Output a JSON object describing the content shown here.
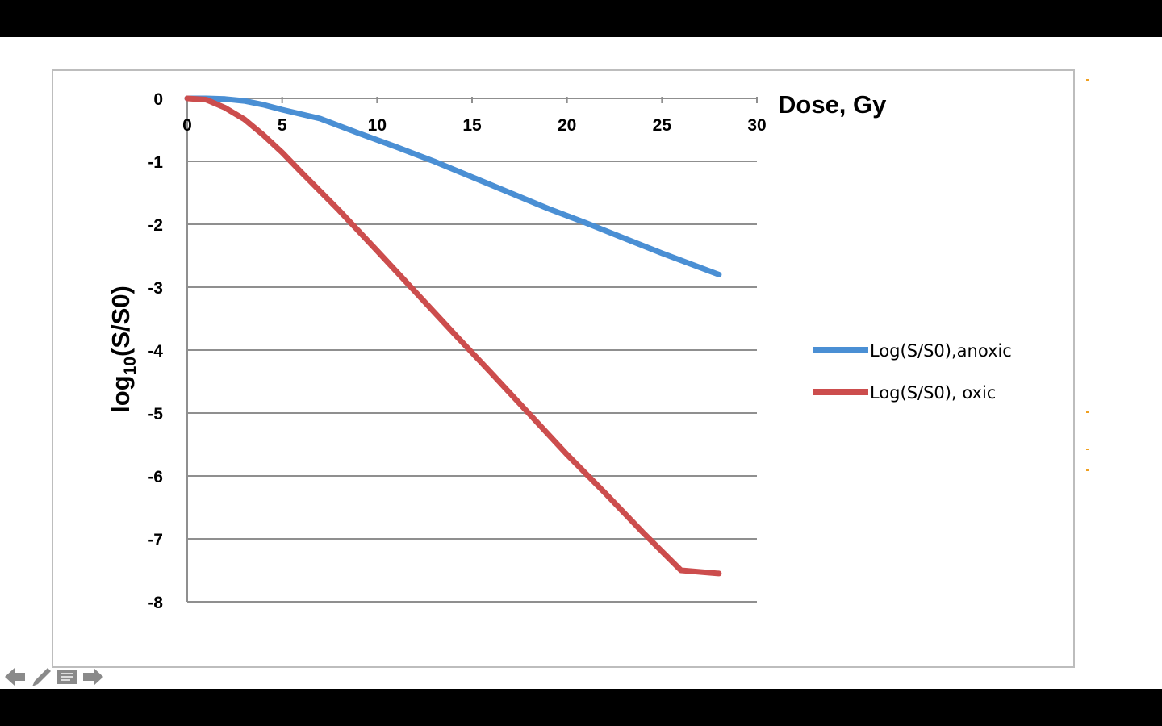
{
  "toolbar": {
    "icons": [
      "previous-arrow-icon",
      "pen-icon",
      "slide-menu-icon",
      "next-arrow-icon"
    ]
  },
  "colors": {
    "anoxic": "#4a8fd4",
    "oxic": "#cc4d4d",
    "grid": "#8f8f8f",
    "frame": "#bdbdbd"
  },
  "chart_data": {
    "type": "line",
    "title": "",
    "xlabel": "Dose, Gy",
    "ylabel_main": "log",
    "ylabel_sub": "10",
    "ylabel_rest": "(S/S0)",
    "xlim": [
      0,
      30
    ],
    "ylim": [
      -8,
      0
    ],
    "xticks": [
      "0",
      "5",
      "10",
      "15",
      "20",
      "25",
      "30"
    ],
    "xtick_values": [
      0,
      5,
      10,
      15,
      20,
      25,
      30
    ],
    "yticks": [
      "0",
      "-1",
      "-2",
      "-3",
      "-4",
      "-5",
      "-6",
      "-7",
      "-8"
    ],
    "ytick_values": [
      0,
      -1,
      -2,
      -3,
      -4,
      -5,
      -6,
      -7,
      -8
    ],
    "grid": true,
    "x_axis_position": "top",
    "legend_position": "right",
    "series": [
      {
        "name": "Log(S/S0),anoxic",
        "x": [
          0,
          1,
          2,
          3,
          4,
          5,
          7,
          9,
          11,
          13,
          15,
          17,
          19,
          21,
          23,
          25,
          28
        ],
        "y": [
          0,
          0,
          -0.01,
          -0.04,
          -0.1,
          -0.18,
          -0.32,
          -0.55,
          -0.77,
          -1.0,
          -1.25,
          -1.5,
          -1.75,
          -1.98,
          -2.22,
          -2.46,
          -2.8
        ]
      },
      {
        "name": "Log(S/S0), oxic",
        "x": [
          0,
          1,
          2,
          3,
          4,
          5,
          6,
          8,
          10,
          12,
          14,
          16,
          18,
          20,
          22,
          24,
          26,
          28
        ],
        "y": [
          0,
          -0.02,
          -0.15,
          -0.33,
          -0.58,
          -0.86,
          -1.17,
          -1.78,
          -2.42,
          -3.07,
          -3.72,
          -4.36,
          -5.01,
          -5.66,
          -6.27,
          -6.9,
          -7.5,
          -7.55
        ]
      }
    ]
  }
}
